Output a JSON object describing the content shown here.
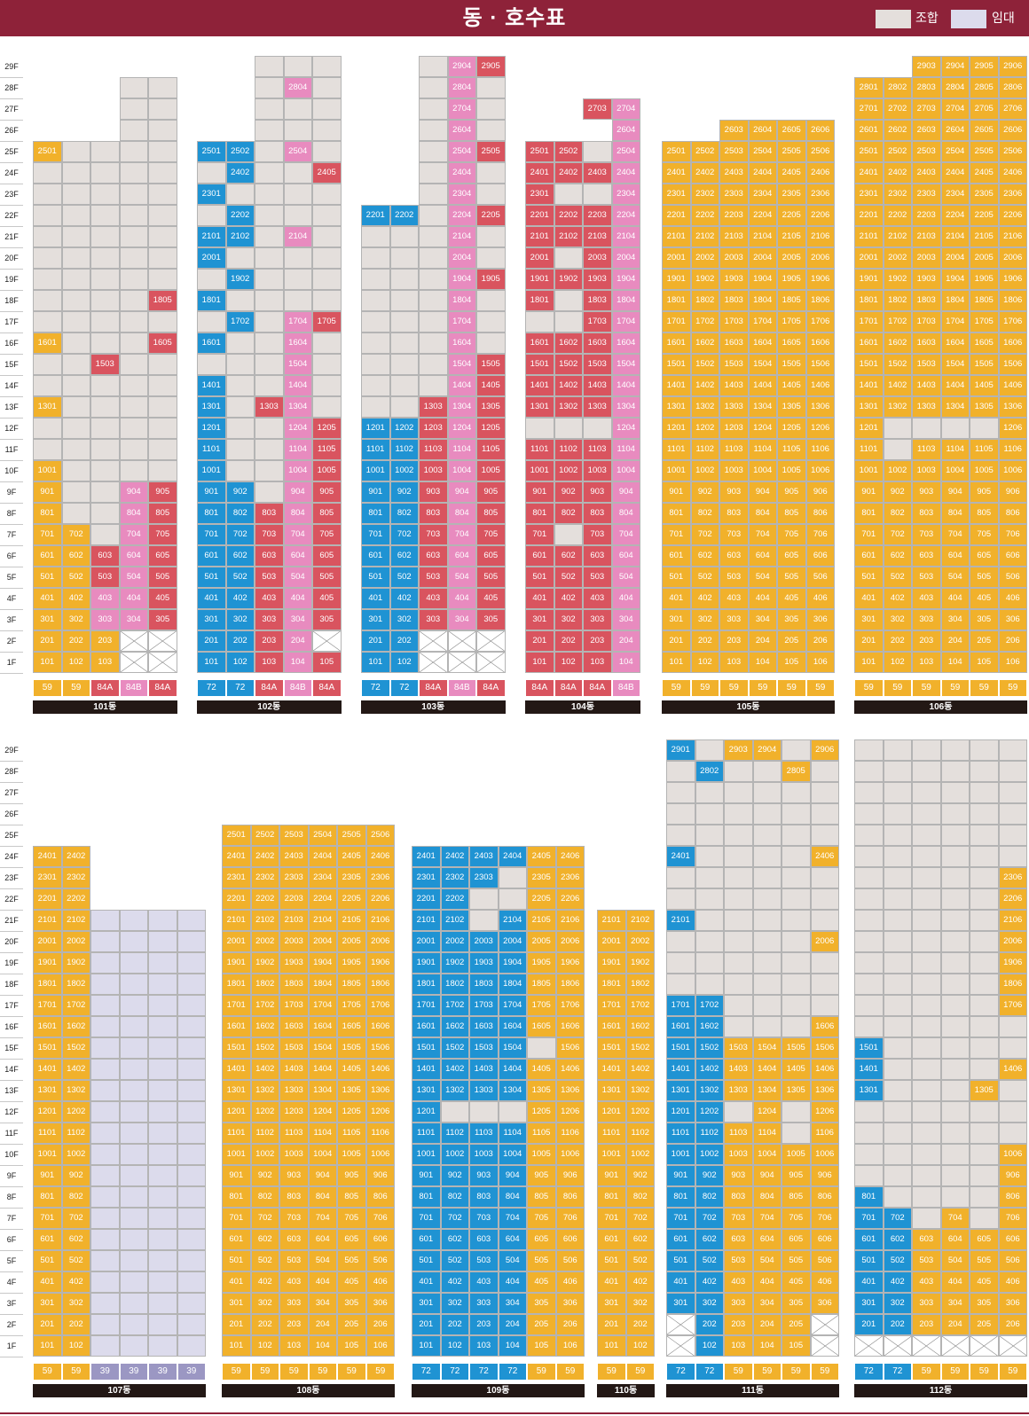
{
  "title": "동 · 호수표",
  "legend": [
    {
      "label": "조합",
      "color": "#e4dfdc"
    },
    {
      "label": "임대",
      "color": "#dcdbec"
    }
  ],
  "floors": [
    "1F",
    "2F",
    "3F",
    "4F",
    "5F",
    "6F",
    "7F",
    "8F",
    "9F",
    "10F",
    "11F",
    "12F",
    "13F",
    "14F",
    "15F",
    "16F",
    "17F",
    "18F",
    "19F",
    "20F",
    "21F",
    "22F",
    "23F",
    "24F",
    "25F",
    "26F",
    "27F",
    "28F",
    "29F"
  ],
  "colors": {
    "O": "#f1b12b",
    "B": "#1f93d3",
    "R": "#d9545f",
    "P": "#e88bbf",
    "U": "#e4dfdc",
    "L": "#dcdbec",
    "X": "#ffffff"
  },
  "buildings": [
    {
      "name": "101동",
      "types": [
        "59",
        "59",
        "84A",
        "84B",
        "84A"
      ],
      "floors": {
        "1": "OOOXX",
        "2": "OOOXX",
        "3": "OOPPR",
        "4": "OOPPR",
        "5": "OORPR",
        "6": "OORPR",
        "7": "OOUPR",
        "8": "OUUPR",
        "9": "OUUPR",
        "10": "OUUUU",
        "11": "UUUUU",
        "12": "UUUUU",
        "13": "OUUUU",
        "14": "UUUUU",
        "15": "UURUU",
        "16": "OUUUR",
        "17": "UUUUU",
        "18": "UUUUR",
        "19": "UUUUU",
        "20": "UUUUU",
        "21": "UUUUU",
        "22": "UUUUU",
        "23": "UUUUU",
        "24": "UUUUU",
        "25": "OUUUU",
        "26": "---UU",
        "27": "---UU",
        "28": "---UU"
      }
    },
    {
      "name": "102동",
      "types": [
        "72",
        "72",
        "84A",
        "84B",
        "84A"
      ],
      "floors": {
        "1": "BBRPR",
        "2": "BBRPX",
        "3": "BBRPR",
        "4": "BBRPR",
        "5": "BBRPR",
        "6": "BBRPR",
        "7": "BBRPR",
        "8": "BBRPR",
        "9": "BBUPR",
        "10": "BUUPR",
        "11": "BUUPR",
        "12": "BUUPR",
        "13": "BURPU",
        "14": "BUUPU",
        "15": "UUUPU",
        "16": "BUUPU",
        "17": "UBUPR",
        "18": "BUUUU",
        "19": "UBUUU",
        "20": "BUUUU",
        "21": "BBUPU",
        "22": "UBUUU",
        "23": "BUUUU",
        "24": "UBUUR",
        "25": "BBUPU",
        "26": "--UUU",
        "27": "--UUU",
        "28": "--UPU",
        "29": "--UUU"
      }
    },
    {
      "name": "103동",
      "types": [
        "72",
        "72",
        "84A",
        "84B",
        "84A"
      ],
      "floors": {
        "1": "BBXXX",
        "2": "BBXXX",
        "3": "BBRPR",
        "4": "BBRPR",
        "5": "BBRPR",
        "6": "BBRPR",
        "7": "BBRPR",
        "8": "BBRPR",
        "9": "BBRPR",
        "10": "BBRPR",
        "11": "BBRPR",
        "12": "BBRPR",
        "13": "UURPR",
        "14": "UUUPR",
        "15": "UUUPR",
        "16": "UUUPU",
        "17": "UUUPU",
        "18": "UUUPU",
        "19": "UUUPR",
        "20": "UUUPU",
        "21": "UUUPU",
        "22": "BBUPR",
        "23": "--UPU",
        "24": "--UPU",
        "25": "--UPR",
        "26": "--UPU",
        "27": "--UPU",
        "28": "--UPU",
        "29": "--UPR"
      }
    },
    {
      "name": "104동",
      "types": [
        "84A",
        "84A",
        "84A",
        "84B"
      ],
      "floors": {
        "1": "RRRP",
        "2": "RRRP",
        "3": "RRRP",
        "4": "RRRP",
        "5": "RRRP",
        "6": "RRRP",
        "7": "RURP",
        "8": "RRRP",
        "9": "RRRP",
        "10": "RRRP",
        "11": "RRRP",
        "12": "UUUP",
        "13": "RRRP",
        "14": "RRRP",
        "15": "RRRP",
        "16": "RRRP",
        "17": "UURP",
        "18": "RURP",
        "19": "RRRP",
        "20": "RURP",
        "21": "RRRP",
        "22": "RRRP",
        "23": "RUUP",
        "24": "RRRP",
        "25": "RRUP",
        "26": "---P",
        "27": "--RP"
      }
    },
    {
      "name": "105동",
      "types": [
        "59",
        "59",
        "59",
        "59",
        "59",
        "59"
      ],
      "floors": {
        "1": "OOOOOO",
        "2": "OOOOOO",
        "3": "OOOOOO",
        "4": "OOOOOO",
        "5": "OOOOOO",
        "6": "OOOOOO",
        "7": "OOOOOO",
        "8": "OOOOOO",
        "9": "OOOOOO",
        "10": "OOOOOO",
        "11": "OOOOOO",
        "12": "OOOOOO",
        "13": "OOOOOO",
        "14": "OOOOOO",
        "15": "OOOOOO",
        "16": "OOOOOO",
        "17": "OOOOOO",
        "18": "OOOOOO",
        "19": "OOOOOO",
        "20": "OOOOOO",
        "21": "OOOOOO",
        "22": "OOOOOO",
        "23": "OOOOOO",
        "24": "OOOOOO",
        "25": "OOOOOO",
        "26": "--OOOO"
      }
    },
    {
      "name": "106동",
      "types": [
        "59",
        "59",
        "59",
        "59",
        "59",
        "59"
      ],
      "floors": {
        "1": "OOOOOO",
        "2": "OOOOOO",
        "3": "OOOOOO",
        "4": "OOOOOO",
        "5": "OOOOOO",
        "6": "OOOOOO",
        "7": "OOOOOO",
        "8": "OOOOOO",
        "9": "OOOOOO",
        "10": "OOOOOO",
        "11": "OUOOOO",
        "12": "OUUUUO",
        "13": "OOOOOO",
        "14": "OOOOOO",
        "15": "OOOOOO",
        "16": "OOOOOO",
        "17": "OOOOOO",
        "18": "OOOOOO",
        "19": "OOOOOO",
        "20": "OOOOOO",
        "21": "OOOOOO",
        "22": "OOOOOO",
        "23": "OOOOOO",
        "24": "OOOOOO",
        "25": "OOOOOO",
        "26": "OOOOOO",
        "27": "OOOOOO",
        "28": "OOOOOO",
        "29": "--OOOO"
      }
    },
    {
      "name": "107동",
      "types": [
        "59",
        "59",
        "39",
        "39",
        "39",
        "39"
      ],
      "floors": {
        "1": "OOLLLL",
        "2": "OOLLLL",
        "3": "OOLLLL",
        "4": "OOLLLL",
        "5": "OOLLLL",
        "6": "OOLLLL",
        "7": "OOLLLL",
        "8": "OOLLLL",
        "9": "OOLLLL",
        "10": "OOLLLL",
        "11": "OOLLLL",
        "12": "OOLLLL",
        "13": "OOLLLL",
        "14": "OOLLLL",
        "15": "OOLLLL",
        "16": "OOLLLL",
        "17": "OOLLLL",
        "18": "OOLLLL",
        "19": "OOLLLL",
        "20": "OOLLLL",
        "21": "OOLLLL",
        "22": "OO----",
        "23": "OO----",
        "24": "OO----"
      }
    },
    {
      "name": "108동",
      "types": [
        "59",
        "59",
        "59",
        "59",
        "59",
        "59"
      ],
      "floors": {
        "1": "OOOOOO",
        "2": "OOOOOO",
        "3": "OOOOOO",
        "4": "OOOOOO",
        "5": "OOOOOO",
        "6": "OOOOOO",
        "7": "OOOOOO",
        "8": "OOOOOO",
        "9": "OOOOOO",
        "10": "OOOOOO",
        "11": "OOOOOO",
        "12": "OOOOOO",
        "13": "OOOOOO",
        "14": "OOOOOO",
        "15": "OOOOOO",
        "16": "OOOOOO",
        "17": "OOOOOO",
        "18": "OOOOOO",
        "19": "OOOOOO",
        "20": "OOOOOO",
        "21": "OOOOOO",
        "22": "OOOOOO",
        "23": "OOOOOO",
        "24": "OOOOOO",
        "25": "OOOOOO"
      }
    },
    {
      "name": "109동",
      "types": [
        "72",
        "72",
        "72",
        "72",
        "59",
        "59"
      ],
      "floors": {
        "1": "BBBBOO",
        "2": "BBBBOO",
        "3": "BBBBOO",
        "4": "BBBBOO",
        "5": "BBBBOO",
        "6": "BBBBOO",
        "7": "BBBBOO",
        "8": "BBBBOO",
        "9": "BBBBOO",
        "10": "BBBBOO",
        "11": "BBBBOO",
        "12": "BUUUOO",
        "13": "BBBBOO",
        "14": "BBBBOO",
        "15": "BBBBUO",
        "16": "BBBBOO",
        "17": "BBBBOO",
        "18": "BBBBOO",
        "19": "BBBBOO",
        "20": "BBBBOO",
        "21": "BBUBOO",
        "22": "BBUUOO",
        "23": "BBBUOO",
        "24": "BBBBOO"
      }
    },
    {
      "name": "110동",
      "types": [
        "59",
        "59"
      ],
      "floors": {
        "1": "OO",
        "2": "OO",
        "3": "OO",
        "4": "OO",
        "5": "OO",
        "6": "OO",
        "7": "OO",
        "8": "OO",
        "9": "OO",
        "10": "OO",
        "11": "OO",
        "12": "OO",
        "13": "OO",
        "14": "OO",
        "15": "OO",
        "16": "OO",
        "17": "OO",
        "18": "OO",
        "19": "OO",
        "20": "OO",
        "21": "OO"
      }
    },
    {
      "name": "111동",
      "types": [
        "72",
        "72",
        "59",
        "59",
        "59",
        "59"
      ],
      "floors": {
        "1": "XBOOOX",
        "2": "XBOOOX",
        "3": "BBOOOO",
        "4": "BBOOOO",
        "5": "BBOOOO",
        "6": "BBOOOO",
        "7": "BBOOOO",
        "8": "BBOOOO",
        "9": "BBOOOO",
        "10": "BBOOOO",
        "11": "BBOOUO",
        "12": "BBUOUO",
        "13": "BBOOOO",
        "14": "BBOOOO",
        "15": "BBOOOO",
        "16": "BBUUUO",
        "17": "BBUUUU",
        "18": "UUUUUU",
        "19": "UUUUUU",
        "20": "UUUUUO",
        "21": "BUUUUU",
        "22": "UUUUUU",
        "23": "UUUUUU",
        "24": "BUUUUO",
        "25": "UUUUUU",
        "26": "UUUUUU",
        "27": "UUUUUU",
        "28": "UBUUOU",
        "29": "BUOOUO"
      }
    },
    {
      "name": "112동",
      "types": [
        "72",
        "72",
        "59",
        "59",
        "59",
        "59"
      ],
      "floors": {
        "1": "XXXXXX",
        "2": "BBOOOO",
        "3": "BBOOOO",
        "4": "BBOOOO",
        "5": "BBOOOO",
        "6": "BBOOOO",
        "7": "BBUOUO",
        "8": "BUUUUO",
        "9": "UUUUUO",
        "10": "UUUUUO",
        "11": "UUUUUU",
        "12": "UUUUUU",
        "13": "BUUUOU",
        "14": "BUUUUO",
        "15": "BUUUUU",
        "16": "UUUUUU",
        "17": "UUUUUO",
        "18": "UUUUUO",
        "19": "UUUUUO",
        "20": "UUUUUO",
        "21": "UUUUUO",
        "22": "UUUUUO",
        "23": "UUUUUO",
        "24": "UUUUUU",
        "25": "UUUUUU",
        "26": "UUUUUU",
        "27": "UUUUUU",
        "28": "UUUUUU",
        "29": "UUUUUU"
      }
    }
  ]
}
